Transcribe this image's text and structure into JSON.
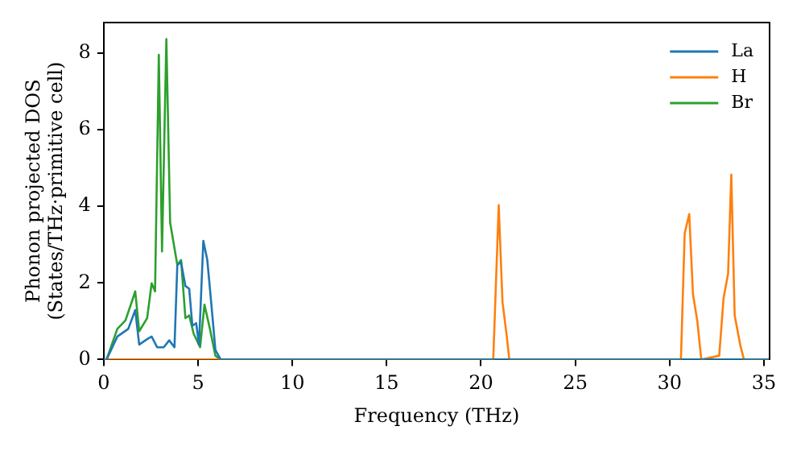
{
  "chart_data": {
    "type": "line",
    "xlabel": "Frequency (THz)",
    "ylabel": "Phonon projected DOS\n(States/THz·primitive cell)",
    "xlim": [
      0,
      35.3
    ],
    "ylim": [
      0,
      8.8
    ],
    "xticks": [
      0,
      5,
      10,
      15,
      20,
      25,
      30,
      35
    ],
    "yticks": [
      0,
      2,
      4,
      6,
      8
    ],
    "grid": false,
    "legend": "top right",
    "marker": "none",
    "line_style": "solid",
    "series": [
      {
        "name": "La",
        "color": "#1f77b4",
        "x": [
          0,
          0.15,
          0.72,
          1.3,
          1.67,
          1.88,
          2.3,
          2.54,
          2.83,
          3.18,
          3.47,
          3.75,
          3.9,
          4.1,
          4.33,
          4.53,
          4.7,
          4.9,
          5.05,
          5.28,
          5.49,
          5.72,
          5.92,
          6.2,
          35.3
        ],
        "values": [
          0,
          0,
          0.6,
          0.8,
          1.29,
          0.39,
          0.53,
          0.6,
          0.32,
          0.32,
          0.5,
          0.32,
          2.47,
          2.54,
          1.92,
          1.85,
          0.88,
          0.95,
          0.39,
          3.1,
          2.6,
          1.36,
          0.25,
          0,
          0
        ]
      },
      {
        "name": "H",
        "color": "#ff7f0e",
        "x": [
          0,
          20.65,
          20.94,
          21.14,
          21.37,
          21.5,
          30.6,
          30.8,
          31.04,
          31.24,
          31.47,
          31.68,
          32.63,
          32.86,
          33.1,
          33.27,
          33.45,
          33.74,
          33.94,
          35.3
        ],
        "values": [
          0,
          0,
          4.03,
          1.5,
          0.6,
          0,
          0,
          3.3,
          3.8,
          1.7,
          1.0,
          0,
          0.1,
          1.6,
          2.24,
          4.83,
          1.15,
          0.39,
          0,
          0
        ]
      },
      {
        "name": "Br",
        "color": "#2ca02c",
        "x": [
          0,
          0.15,
          0.72,
          1.15,
          1.53,
          1.67,
          1.88,
          2.3,
          2.54,
          2.72,
          2.92,
          3.09,
          3.32,
          3.52,
          3.9,
          4.1,
          4.33,
          4.53,
          4.77,
          5.11,
          5.34,
          5.63,
          5.92,
          6.2,
          35.3
        ],
        "values": [
          0,
          0,
          0.8,
          1.02,
          1.57,
          1.78,
          0.74,
          1.08,
          1.99,
          1.78,
          7.96,
          2.82,
          8.37,
          3.58,
          2.47,
          2.6,
          1.08,
          1.15,
          0.67,
          0.32,
          1.43,
          0.8,
          0.1,
          0,
          0
        ]
      }
    ]
  }
}
